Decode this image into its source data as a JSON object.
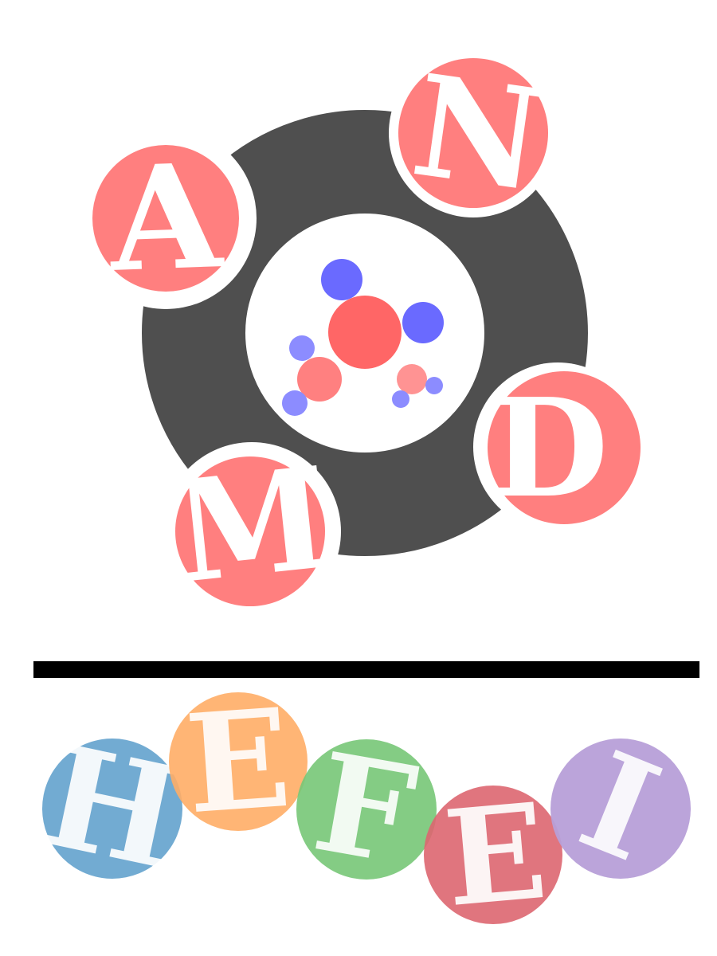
{
  "logo": {
    "ring_color": "#4f4f4f",
    "top_letters": [
      {
        "letter": "A",
        "color": "#ff7f7f"
      },
      {
        "letter": "N",
        "color": "#ff7f7f"
      },
      {
        "letter": "D",
        "color": "#ff7f7f"
      },
      {
        "letter": "M",
        "color": "#ff7f7f"
      }
    ],
    "molecule_colors": {
      "red": "#ff6666",
      "red_light": "#ff8080",
      "blue": "#6a6aff",
      "blue_light": "#8c8cff"
    },
    "divider_color": "#000000",
    "bottom_letters": [
      {
        "letter": "H",
        "color": "#6aa6d0"
      },
      {
        "letter": "E",
        "color": "#ffad66"
      },
      {
        "letter": "F",
        "color": "#77c677"
      },
      {
        "letter": "E",
        "color": "#dd6670"
      },
      {
        "letter": "I",
        "color": "#b79fd8"
      }
    ]
  }
}
